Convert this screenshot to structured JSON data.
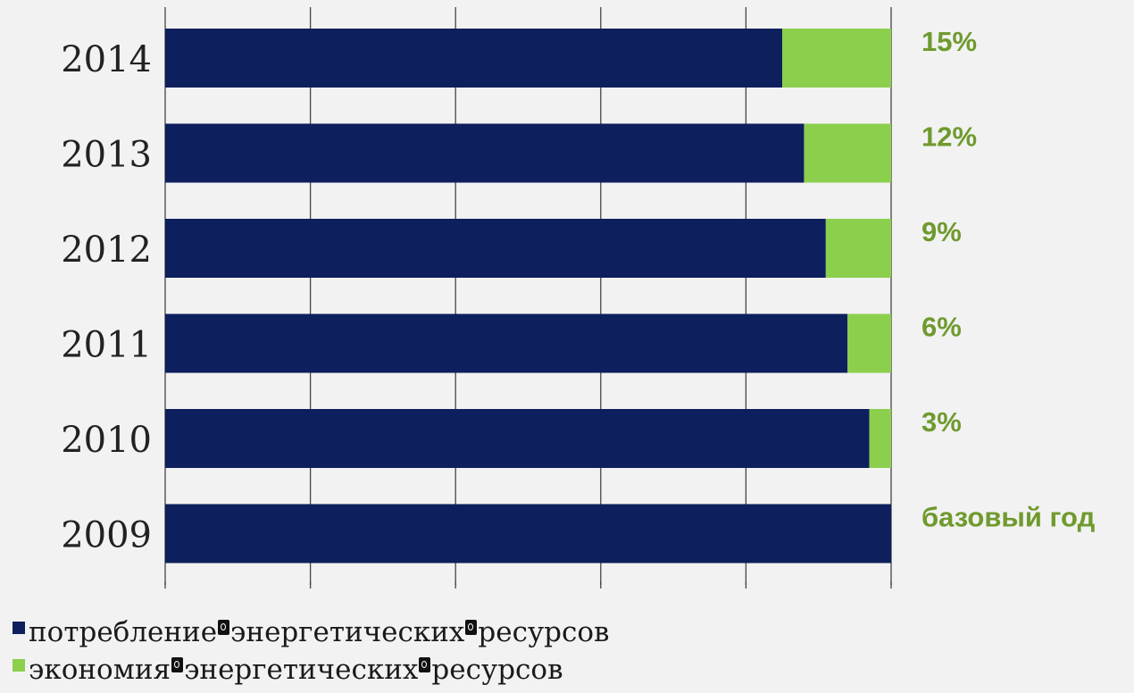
{
  "chart_data": {
    "type": "bar",
    "orientation": "horizontal",
    "stacked": true,
    "categories": [
      "2014",
      "2013",
      "2012",
      "2011",
      "2010",
      "2009"
    ],
    "series": [
      {
        "name": "потребление энергетических ресурсов",
        "color": "#0d1f5c",
        "values": [
          85,
          88,
          91,
          94,
          97,
          100
        ]
      },
      {
        "name": "экономия энергетических ресурсов",
        "color": "#8ccf4d",
        "values": [
          15,
          12,
          9,
          6,
          3,
          0
        ]
      }
    ],
    "data_labels": [
      "15%",
      "12%",
      "9%",
      "6%",
      "3%",
      "базовый год"
    ],
    "data_label_color": "#6f9a2e",
    "xlim": [
      0,
      100
    ],
    "grid": "vertical",
    "legend_position": "bottom-left",
    "title": "",
    "xlabel": "",
    "ylabel": ""
  },
  "legend": {
    "consumption": {
      "words": [
        "потребление",
        "энергетических",
        "ресурсов"
      ],
      "color": "#0d1f5c"
    },
    "savings": {
      "words": [
        "экономия",
        "энергетических",
        "ресурсов"
      ],
      "color": "#8ccf4d"
    }
  }
}
